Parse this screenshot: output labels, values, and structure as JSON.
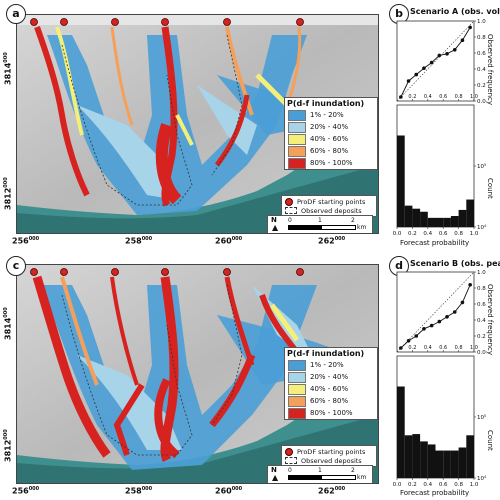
{
  "figure": {
    "panels": [
      {
        "id": "map-a",
        "tag": "a",
        "y_ticks": [
          {
            "main": "3812",
            "sup": "000"
          },
          {
            "main": "3814",
            "sup": "000"
          }
        ],
        "x_ticks": [
          {
            "main": "256",
            "sup": "000"
          },
          {
            "main": "258",
            "sup": "000"
          },
          {
            "main": "260",
            "sup": "000"
          },
          {
            "main": "262",
            "sup": "000"
          }
        ]
      },
      {
        "id": "map-c",
        "tag": "c",
        "y_ticks": [
          {
            "main": "3812",
            "sup": "000"
          },
          {
            "main": "3814",
            "sup": "000"
          }
        ],
        "x_ticks": [
          {
            "main": "256",
            "sup": "000"
          },
          {
            "main": "258",
            "sup": "000"
          },
          {
            "main": "260",
            "sup": "000"
          },
          {
            "main": "262",
            "sup": "000"
          }
        ]
      }
    ],
    "legend": {
      "title": "P(d-f inundation)",
      "items": [
        {
          "label": "1% - 20%",
          "color": "#4a9ed6"
        },
        {
          "label": "20% - 40%",
          "color": "#a8d4ea"
        },
        {
          "label": "40% - 60%",
          "color": "#f3ef7a"
        },
        {
          "label": "60% - 80%",
          "color": "#f5a05a"
        },
        {
          "label": "80% - 100%",
          "color": "#d7231f"
        }
      ],
      "start_points": "ProDF starting points",
      "deposits": "Observed deposits"
    },
    "scalebar": {
      "north": "N",
      "t0": "0",
      "t1": "1",
      "t2": "2",
      "unit": "km"
    }
  },
  "chart_data": [
    {
      "type": "line",
      "tag": "b",
      "title": "Scenario A (obs. volume)",
      "ylabel": "Observed frequency",
      "x": [
        0.05,
        0.15,
        0.25,
        0.35,
        0.45,
        0.55,
        0.65,
        0.75,
        0.85,
        0.95
      ],
      "y": [
        0.05,
        0.25,
        0.33,
        0.41,
        0.48,
        0.57,
        0.59,
        0.64,
        0.76,
        0.92
      ],
      "xlim": [
        0,
        1
      ],
      "ylim": [
        0,
        1
      ],
      "yticks": [
        "0.0",
        "0.2",
        "0.4",
        "0.6",
        "0.8",
        "1.0"
      ]
    },
    {
      "type": "bar",
      "ylabel": "Count",
      "xlabel": "Forecast probability",
      "scale": "log",
      "values": [
        5.5,
        4.35,
        4.3,
        4.25,
        4.15,
        4.15,
        4.15,
        4.18,
        4.28,
        4.45
      ],
      "ylim_log10": [
        4,
        6
      ],
      "yticks_log": [
        {
          "main": "10",
          "sup": "4"
        },
        {
          "main": "10",
          "sup": "5"
        }
      ],
      "xticks": [
        "0.0",
        "0.2",
        "0.4",
        "0.6",
        "0.8",
        "1.0"
      ]
    },
    {
      "type": "line",
      "tag": "d",
      "title": "Scenario B (obs. peak I",
      "title_sub": "15",
      "title_end": ")",
      "ylabel": "Observed frequency",
      "x": [
        0.05,
        0.15,
        0.25,
        0.35,
        0.45,
        0.55,
        0.65,
        0.75,
        0.85,
        0.95
      ],
      "y": [
        0.05,
        0.14,
        0.2,
        0.29,
        0.33,
        0.38,
        0.44,
        0.5,
        0.62,
        0.84
      ],
      "xlim": [
        0,
        1
      ],
      "ylim": [
        0,
        1
      ],
      "yticks": [
        "0.0",
        "0.2",
        "0.4",
        "0.6",
        "0.8",
        "1.0"
      ]
    },
    {
      "type": "bar",
      "ylabel": "Count",
      "xlabel": "Forecast probability",
      "scale": "log",
      "values": [
        5.5,
        4.7,
        4.72,
        4.6,
        4.55,
        4.45,
        4.45,
        4.45,
        4.5,
        4.7
      ],
      "ylim_log10": [
        4,
        6
      ],
      "yticks_log": [
        {
          "main": "10",
          "sup": "4"
        },
        {
          "main": "10",
          "sup": "5"
        }
      ],
      "xticks": [
        "0.0",
        "0.2",
        "0.4",
        "0.6",
        "0.8",
        "1.0"
      ]
    }
  ]
}
